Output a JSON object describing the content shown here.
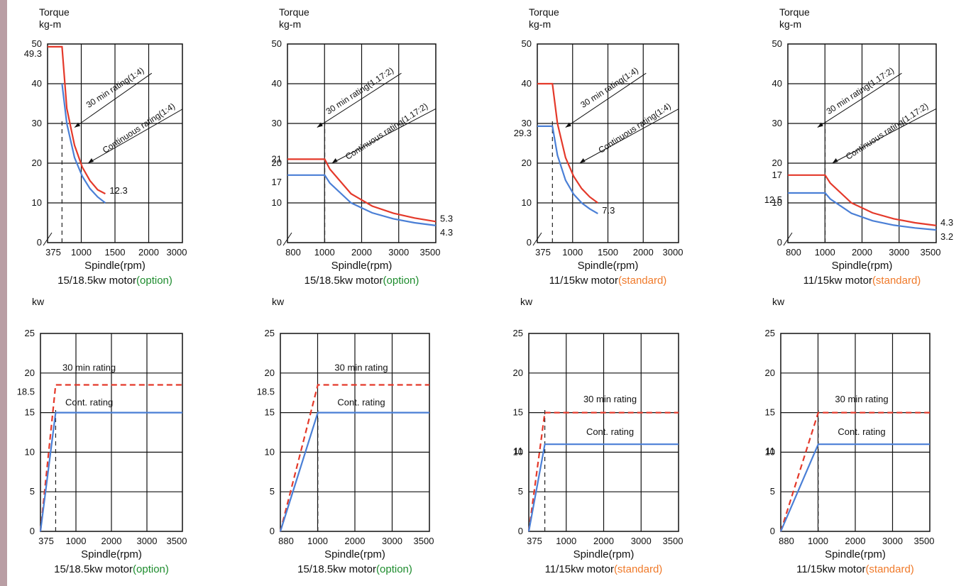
{
  "colors": {
    "thirty_min": "#e4392a",
    "continuous": "#4a7fd6",
    "grid": "#111111",
    "option": "#1e8c2e",
    "standard": "#f07a2a",
    "side_strip": "#b99ea4"
  },
  "chart_data": [
    {
      "type": "line",
      "ylabel": [
        "Torque",
        "kg-m"
      ],
      "xlabel": "Spindle(rpm)",
      "caption_main": "15/18.5kw motor",
      "caption_paren": "(option)",
      "caption_color": "option",
      "xlim": [
        0,
        3500
      ],
      "ylim": [
        0,
        50
      ],
      "xticks": [
        375,
        1000,
        1500,
        2000,
        3000
      ],
      "yticks": [
        0,
        10,
        20,
        30,
        40,
        50
      ],
      "extra_ylabels": [
        {
          "text": "49.3",
          "y": 49.3
        }
      ],
      "axis_break": true,
      "series": [
        {
          "name": "30 min rating(1:4)",
          "color": "thirty_min",
          "style": "solid",
          "points": [
            [
              0,
              49.3
            ],
            [
              375,
              49.3
            ],
            [
              500,
              33.8
            ],
            [
              700,
              24.5
            ],
            [
              900,
              19
            ],
            [
              1100,
              15.6
            ],
            [
              1300,
              13.3
            ],
            [
              1500,
              12.3
            ]
          ]
        },
        {
          "name": "Continuous rating(1:4)",
          "color": "continuous",
          "style": "solid",
          "points": [
            [
              375,
              40
            ],
            [
              500,
              30
            ],
            [
              700,
              21.4
            ],
            [
              900,
              16.7
            ],
            [
              1100,
              13.6
            ],
            [
              1300,
              11.5
            ],
            [
              1500,
              10
            ]
          ]
        }
      ],
      "ref_lines": [
        {
          "x": 375
        }
      ],
      "point_labels": [
        {
          "text": "12.3",
          "x": 1500,
          "y": 12.3
        }
      ],
      "annotations": [
        {
          "text": "30 min rating(1:4)",
          "type": "red"
        },
        {
          "text": "Continuous rating(1:4)",
          "type": "blue"
        }
      ]
    },
    {
      "type": "line",
      "ylabel": [
        "Torque",
        "kg-m"
      ],
      "xlabel": "Spindle(rpm)",
      "caption_main": "15/18.5kw motor",
      "caption_paren": "(option)",
      "caption_color": "option",
      "xlim": [
        0,
        3500
      ],
      "ylim": [
        0,
        50
      ],
      "xticks": [
        800,
        1000,
        2000,
        3000,
        3500
      ],
      "yticks": [
        0,
        10,
        20,
        30,
        40,
        50
      ],
      "extra_ylabels": [
        {
          "text": "21",
          "y": 21
        },
        {
          "text": "17",
          "y": 17
        }
      ],
      "axis_break": true,
      "series": [
        {
          "name": "30 min rating(1.17:2)",
          "color": "thirty_min",
          "style": "solid",
          "points": [
            [
              0,
              21
            ],
            [
              880,
              21
            ],
            [
              1000,
              18.5
            ],
            [
              1500,
              12.3
            ],
            [
              2000,
              9.2
            ],
            [
              2500,
              7.4
            ],
            [
              3000,
              6.2
            ],
            [
              3500,
              5.3
            ]
          ]
        },
        {
          "name": "Continuous rating(1.17:2)",
          "color": "continuous",
          "style": "solid",
          "points": [
            [
              0,
              17
            ],
            [
              880,
              17
            ],
            [
              1000,
              15
            ],
            [
              1500,
              10
            ],
            [
              2000,
              7.5
            ],
            [
              2500,
              6
            ],
            [
              3000,
              5
            ],
            [
              3500,
              4.3
            ]
          ]
        }
      ],
      "ref_lines": [
        {
          "x": 880
        }
      ],
      "point_labels": [
        {
          "text": "5.3",
          "x": 3500,
          "y": 5.3
        },
        {
          "text": "4.3",
          "x": 3500,
          "y": 4.3
        }
      ],
      "annotations": [
        {
          "text": "30 min rating(1.17:2)",
          "type": "red"
        },
        {
          "text": "Continuous rating(1.17:2)",
          "type": "blue"
        }
      ]
    },
    {
      "type": "line",
      "ylabel": [
        "Torque",
        "kg-m"
      ],
      "xlabel": "Spindle(rpm)",
      "caption_main": "11/15kw motor",
      "caption_paren": "(standard)",
      "caption_color": "standard",
      "xlim": [
        0,
        3500
      ],
      "ylim": [
        0,
        50
      ],
      "xticks": [
        375,
        1000,
        1500,
        2000,
        3000
      ],
      "yticks": [
        0,
        10,
        20,
        30,
        40,
        50
      ],
      "extra_ylabels": [
        {
          "text": "29.3",
          "y": 29.3
        }
      ],
      "axis_break": true,
      "series": [
        {
          "name": "30 min rating(1:4)",
          "color": "thirty_min",
          "style": "solid",
          "points": [
            [
              0,
              40
            ],
            [
              375,
              40
            ],
            [
              500,
              30
            ],
            [
              700,
              21.4
            ],
            [
              900,
              16.7
            ],
            [
              1100,
              13.6
            ],
            [
              1300,
              11.5
            ],
            [
              1500,
              10
            ]
          ]
        },
        {
          "name": "Continuous rating(1:4)",
          "color": "continuous",
          "style": "solid",
          "points": [
            [
              0,
              29.3
            ],
            [
              375,
              29.3
            ],
            [
              500,
              22
            ],
            [
              700,
              15.7
            ],
            [
              900,
              12.2
            ],
            [
              1100,
              10
            ],
            [
              1300,
              8.5
            ],
            [
              1500,
              7.3
            ]
          ]
        }
      ],
      "ref_lines": [
        {
          "x": 375
        }
      ],
      "point_labels": [
        {
          "text": "7.3",
          "x": 1500,
          "y": 7.3
        }
      ],
      "annotations": [
        {
          "text": "30 min rating(1:4)",
          "type": "red"
        },
        {
          "text": "Continuous rating(1:4)",
          "type": "blue"
        }
      ]
    },
    {
      "type": "line",
      "ylabel": [
        "Torque",
        "kg-m"
      ],
      "xlabel": "Spindle(rpm)",
      "caption_main": "11/15kw motor",
      "caption_paren": "(standard)",
      "caption_color": "standard",
      "xlim": [
        0,
        3500
      ],
      "ylim": [
        0,
        50
      ],
      "xticks": [
        800,
        1000,
        2000,
        3000,
        3500
      ],
      "yticks": [
        0,
        10,
        20,
        30,
        40,
        50
      ],
      "extra_ylabels": [
        {
          "text": "17",
          "y": 17
        },
        {
          "text": "12.5",
          "y": 12.5
        }
      ],
      "axis_break": true,
      "series": [
        {
          "name": "30 min rating(1.17:2)",
          "color": "thirty_min",
          "style": "solid",
          "points": [
            [
              0,
              17
            ],
            [
              880,
              17
            ],
            [
              1000,
              15
            ],
            [
              1500,
              10
            ],
            [
              2000,
              7.5
            ],
            [
              2500,
              6
            ],
            [
              3000,
              5
            ],
            [
              3500,
              4.3
            ]
          ]
        },
        {
          "name": "Continuous rating(1.17:2)",
          "color": "continuous",
          "style": "solid",
          "points": [
            [
              0,
              12.5
            ],
            [
              880,
              12.5
            ],
            [
              1000,
              11
            ],
            [
              1500,
              7.4
            ],
            [
              2000,
              5.5
            ],
            [
              2500,
              4.4
            ],
            [
              3000,
              3.7
            ],
            [
              3500,
              3.2
            ]
          ]
        }
      ],
      "ref_lines": [
        {
          "x": 880
        }
      ],
      "point_labels": [
        {
          "text": "4.3",
          "x": 3500,
          "y": 4.3
        },
        {
          "text": "3.2",
          "x": 3500,
          "y": 3.2
        }
      ],
      "annotations": [
        {
          "text": "30 min rating(1.17:2)",
          "type": "red"
        },
        {
          "text": "Continuous rating(1.17:2)",
          "type": "blue"
        }
      ]
    },
    {
      "type": "line",
      "ylabel": [
        "kw"
      ],
      "xlabel": "Spindle(rpm)",
      "caption_main": "15/18.5kw motor",
      "caption_paren": "(option)",
      "caption_color": "option",
      "xlim": [
        0,
        3500
      ],
      "ylim": [
        0,
        25
      ],
      "xticks": [
        375,
        1000,
        2000,
        3000,
        3500
      ],
      "yticks": [
        0,
        5,
        10,
        15,
        20,
        25
      ],
      "extra_ylabels": [
        {
          "text": "18.5",
          "y": 18.5
        }
      ],
      "axis_break": false,
      "series": [
        {
          "name": "30 min rating",
          "color": "thirty_min",
          "style": "dashed",
          "points": [
            [
              0,
              0
            ],
            [
              375,
              18.5
            ],
            [
              3500,
              18.5
            ]
          ]
        },
        {
          "name": "Cont. rating",
          "color": "continuous",
          "style": "solid",
          "points": [
            [
              0,
              0
            ],
            [
              375,
              15
            ],
            [
              3500,
              15
            ]
          ]
        }
      ],
      "ref_lines": [
        {
          "x": 375
        }
      ],
      "point_labels": [],
      "series_labels": [
        {
          "text": "30 min rating",
          "x": 1200,
          "y": 20.3
        },
        {
          "text": "Cont. rating",
          "x": 1200,
          "y": 15.9
        }
      ]
    },
    {
      "type": "line",
      "ylabel": [
        "kw"
      ],
      "xlabel": "Spindle(rpm)",
      "caption_main": "15/18.5kw motor",
      "caption_paren": "(option)",
      "caption_color": "option",
      "xlim": [
        0,
        3500
      ],
      "ylim": [
        0,
        25
      ],
      "xticks": [
        880,
        1000,
        2000,
        3000,
        3500
      ],
      "yticks": [
        0,
        5,
        10,
        15,
        20,
        25
      ],
      "extra_ylabels": [
        {
          "text": "18.5",
          "y": 18.5
        }
      ],
      "axis_break": false,
      "series": [
        {
          "name": "30 min rating",
          "color": "thirty_min",
          "style": "dashed",
          "points": [
            [
              0,
              0
            ],
            [
              880,
              18.5
            ],
            [
              3500,
              18.5
            ]
          ]
        },
        {
          "name": "Cont. rating",
          "color": "continuous",
          "style": "solid",
          "points": [
            [
              0,
              0
            ],
            [
              880,
              15
            ],
            [
              3500,
              15
            ]
          ]
        }
      ],
      "ref_lines": [
        {
          "x": 880
        }
      ],
      "point_labels": [],
      "series_labels": [
        {
          "text": "30 min rating",
          "x": 1900,
          "y": 20.3
        },
        {
          "text": "Cont. rating",
          "x": 1900,
          "y": 15.9
        }
      ]
    },
    {
      "type": "line",
      "ylabel": [
        "kw"
      ],
      "xlabel": "Spindle(rpm)",
      "caption_main": "11/15kw motor",
      "caption_paren": "(standard)",
      "caption_color": "standard",
      "xlim": [
        0,
        3500
      ],
      "ylim": [
        0,
        25
      ],
      "xticks": [
        375,
        1000,
        2000,
        3000,
        3500
      ],
      "yticks": [
        0,
        5,
        10,
        15,
        20,
        25
      ],
      "extra_ylabels": [
        {
          "text": "11",
          "y": 11
        }
      ],
      "axis_break": false,
      "series": [
        {
          "name": "30 min rating",
          "color": "thirty_min",
          "style": "dashed",
          "points": [
            [
              0,
              0
            ],
            [
              375,
              15
            ],
            [
              3500,
              15
            ]
          ]
        },
        {
          "name": "Cont. rating",
          "color": "continuous",
          "style": "solid",
          "points": [
            [
              0,
              0
            ],
            [
              375,
              11
            ],
            [
              3500,
              11
            ]
          ]
        }
      ],
      "ref_lines": [
        {
          "x": 375
        }
      ],
      "point_labels": [],
      "series_labels": [
        {
          "text": "30 min rating",
          "x": 1900,
          "y": 16.3
        },
        {
          "text": "Cont. rating",
          "x": 1900,
          "y": 12.2
        }
      ]
    },
    {
      "type": "line",
      "ylabel": [
        "kw"
      ],
      "xlabel": "Spindle(rpm)",
      "caption_main": "11/15kw motor",
      "caption_paren": "(standard)",
      "caption_color": "standard",
      "xlim": [
        0,
        3500
      ],
      "ylim": [
        0,
        25
      ],
      "xticks": [
        880,
        1000,
        2000,
        3000,
        3500
      ],
      "yticks": [
        0,
        5,
        10,
        15,
        20,
        25
      ],
      "extra_ylabels": [
        {
          "text": "11",
          "y": 11
        }
      ],
      "axis_break": false,
      "series": [
        {
          "name": "30 min rating",
          "color": "thirty_min",
          "style": "dashed",
          "points": [
            [
              0,
              0
            ],
            [
              880,
              15
            ],
            [
              3500,
              15
            ]
          ]
        },
        {
          "name": "Cont. rating",
          "color": "continuous",
          "style": "solid",
          "points": [
            [
              0,
              0
            ],
            [
              880,
              11
            ],
            [
              3500,
              11
            ]
          ]
        }
      ],
      "ref_lines": [
        {
          "x": 880
        }
      ],
      "point_labels": [],
      "series_labels": [
        {
          "text": "30 min rating",
          "x": 1900,
          "y": 16.3
        },
        {
          "text": "Cont. rating",
          "x": 1900,
          "y": 12.2
        }
      ]
    }
  ]
}
